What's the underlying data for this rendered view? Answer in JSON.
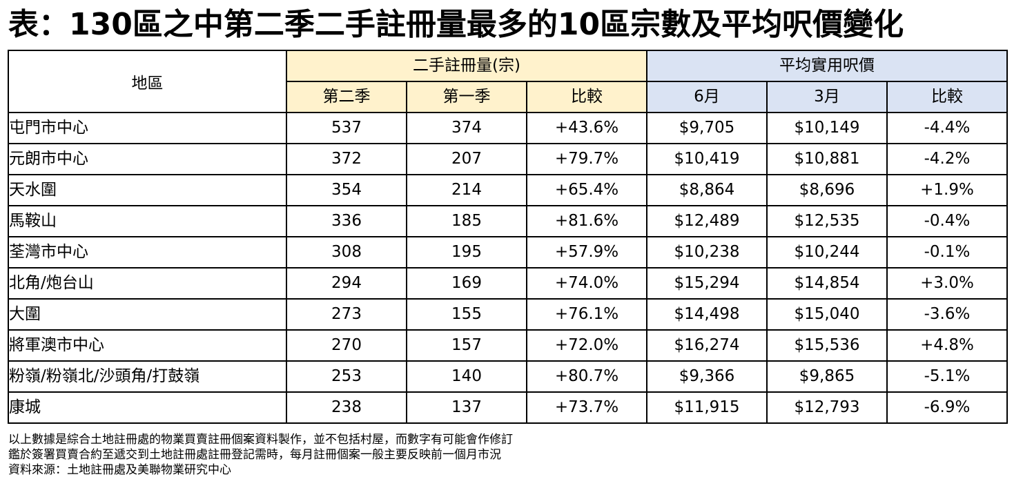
{
  "title": "表：130區之中第二季二手註冊量最多的10區宗數及平均呎價變化",
  "table": {
    "area_header": "地區",
    "group1_header": "二手註冊量(宗)",
    "group2_header": "平均實用呎價",
    "sub_headers": [
      "第二季",
      "第一季",
      "比較",
      "6月",
      "3月",
      "比較"
    ],
    "rows": [
      {
        "area": "屯門市中心",
        "q2": "537",
        "q1": "374",
        "vol_change": "+43.6%",
        "jun": "$9,705",
        "mar": "$10,149",
        "price_change": "-4.4%"
      },
      {
        "area": "元朗市中心",
        "q2": "372",
        "q1": "207",
        "vol_change": "+79.7%",
        "jun": "$10,419",
        "mar": "$10,881",
        "price_change": "-4.2%"
      },
      {
        "area": "天水圍",
        "q2": "354",
        "q1": "214",
        "vol_change": "+65.4%",
        "jun": "$8,864",
        "mar": "$8,696",
        "price_change": "+1.9%"
      },
      {
        "area": "馬鞍山",
        "q2": "336",
        "q1": "185",
        "vol_change": "+81.6%",
        "jun": "$12,489",
        "mar": "$12,535",
        "price_change": "-0.4%"
      },
      {
        "area": "荃灣市中心",
        "q2": "308",
        "q1": "195",
        "vol_change": "+57.9%",
        "jun": "$10,238",
        "mar": "$10,244",
        "price_change": "-0.1%"
      },
      {
        "area": "北角/炮台山",
        "q2": "294",
        "q1": "169",
        "vol_change": "+74.0%",
        "jun": "$15,294",
        "mar": "$14,854",
        "price_change": "+3.0%"
      },
      {
        "area": "大圍",
        "q2": "273",
        "q1": "155",
        "vol_change": "+76.1%",
        "jun": "$14,498",
        "mar": "$15,040",
        "price_change": "-3.6%"
      },
      {
        "area": "將軍澳市中心",
        "q2": "270",
        "q1": "157",
        "vol_change": "+72.0%",
        "jun": "$16,274",
        "mar": "$15,536",
        "price_change": "+4.8%"
      },
      {
        "area": "粉嶺/粉嶺北/沙頭角/打鼓嶺",
        "q2": "253",
        "q1": "140",
        "vol_change": "+80.7%",
        "jun": "$9,366",
        "mar": "$9,865",
        "price_change": "-5.1%"
      },
      {
        "area": "康城",
        "q2": "238",
        "q1": "137",
        "vol_change": "+73.7%",
        "jun": "$11,915",
        "mar": "$12,793",
        "price_change": "-6.9%"
      }
    ]
  },
  "notes": [
    "以上數據是綜合土地註冊處的物業買賣註冊個案資料製作，並不包括村屋，而數字有可能會作修訂",
    "鑑於簽署買賣合約至遞交到土地註冊處註冊登記需時，每月註冊個案一般主要反映前一個月市況",
    "資料來源：土地註冊處及美聯物業研究中心"
  ],
  "colors": {
    "volume_header_bg": "#fff2cc",
    "price_header_bg": "#dae3f3",
    "border": "#000000"
  }
}
